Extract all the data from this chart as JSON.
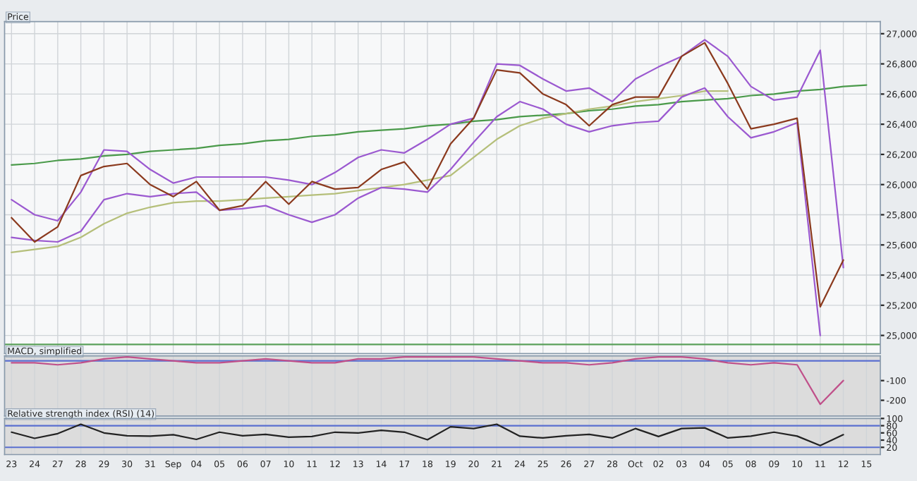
{
  "chart_data": [
    {
      "type": "line",
      "title": "Price",
      "ylim": [
        24880,
        27080
      ],
      "tick_labels": "y",
      "grid": true,
      "legend": false,
      "categories": [
        null,
        null,
        null,
        null,
        null,
        null,
        null,
        null,
        null,
        null,
        null,
        null,
        null,
        null,
        null,
        null,
        null,
        null,
        null,
        null,
        null,
        null,
        null,
        null,
        null,
        null,
        null,
        null,
        null,
        null,
        null,
        null,
        null,
        null,
        null,
        null,
        null,
        null
      ],
      "yticks": [
        {
          "value": 25000,
          "label": "25,000"
        },
        {
          "value": 25200,
          "label": "25,200"
        },
        {
          "value": 25400,
          "label": "25,400"
        },
        {
          "value": 25600,
          "label": "25,600"
        },
        {
          "value": 25800,
          "label": "25,800"
        },
        {
          "value": 26000,
          "label": "26,000"
        },
        {
          "value": 26200,
          "label": "26,200"
        },
        {
          "value": 26400,
          "label": "26,400"
        },
        {
          "value": 26600,
          "label": "26,600"
        },
        {
          "value": 26800,
          "label": "26,800"
        },
        {
          "value": 27000,
          "label": "27,000"
        }
      ],
      "ref_lines": [
        {
          "axis": "y",
          "value": 24940,
          "color": "#5aa05a"
        }
      ],
      "series": [
        {
          "color": "#4a9a4a",
          "values": [
            26130,
            26140,
            26160,
            26170,
            26190,
            26200,
            26220,
            26230,
            26240,
            26260,
            26270,
            26290,
            26300,
            26320,
            26330,
            26350,
            26360,
            26370,
            26390,
            26400,
            26420,
            26430,
            26450,
            26460,
            26470,
            26490,
            26500,
            26520,
            26530,
            26550,
            26560,
            26570,
            26590,
            26600,
            26620,
            26630,
            26650,
            26660
          ]
        },
        {
          "color": "#b5bf7a",
          "values": [
            25550,
            25570,
            25590,
            25650,
            25740,
            25810,
            25850,
            25880,
            25890,
            25890,
            25900,
            25910,
            25920,
            25930,
            25940,
            25960,
            25980,
            26000,
            26030,
            26060,
            26180,
            26300,
            26390,
            26440,
            26470,
            26500,
            26520,
            26550,
            26570,
            26590,
            26620,
            26620,
            null,
            null,
            null,
            null,
            null,
            null
          ]
        },
        {
          "color": "#9b59d0",
          "values": [
            25900,
            25800,
            25760,
            25950,
            26230,
            26220,
            26100,
            26010,
            26050,
            26050,
            26050,
            26050,
            26030,
            26000,
            26080,
            26180,
            26230,
            26210,
            26300,
            26400,
            26440,
            26800,
            26790,
            26700,
            26620,
            26640,
            26550,
            26700,
            26780,
            26850,
            26960,
            26850,
            26650,
            26560,
            26580,
            26890,
            25450,
            null
          ]
        },
        {
          "color": "#9b59d0",
          "values": [
            25650,
            25630,
            25620,
            25690,
            25900,
            25940,
            25920,
            25940,
            25950,
            25830,
            25840,
            25860,
            25800,
            25750,
            25800,
            25910,
            25980,
            25970,
            25950,
            26100,
            26280,
            26450,
            26550,
            26500,
            26400,
            26350,
            26390,
            26410,
            26420,
            26580,
            26640,
            26450,
            26310,
            26350,
            26410,
            25000,
            null,
            null
          ]
        },
        {
          "color": "#8b3a1e",
          "values": [
            25780,
            25620,
            25720,
            26060,
            26120,
            26140,
            26000,
            25920,
            26020,
            25830,
            25860,
            26020,
            25870,
            26020,
            25970,
            25980,
            26100,
            26150,
            25970,
            26270,
            26440,
            26760,
            26740,
            26600,
            26530,
            26390,
            26530,
            26580,
            26580,
            26850,
            26940,
            26670,
            26370,
            26400,
            26440,
            25190,
            25500,
            null
          ]
        }
      ]
    },
    {
      "type": "line",
      "title": "MACD, simplified",
      "ylim": [
        -280,
        25
      ],
      "tick_labels": "y",
      "grid": "x",
      "legend": false,
      "categories": [
        null,
        null,
        null,
        null,
        null,
        null,
        null,
        null,
        null,
        null,
        null,
        null,
        null,
        null,
        null,
        null,
        null,
        null,
        null,
        null,
        null,
        null,
        null,
        null,
        null,
        null,
        null,
        null,
        null,
        null,
        null,
        null,
        null,
        null,
        null,
        null,
        null,
        null
      ],
      "yticks": [
        -100,
        -200
      ],
      "ref_lines": [
        {
          "axis": "y",
          "value": 0,
          "color": "#5a6fd0"
        }
      ],
      "series": [
        {
          "color": "#c0508a",
          "values": [
            -10,
            -10,
            -20,
            -10,
            10,
            20,
            10,
            0,
            -10,
            -10,
            0,
            10,
            0,
            -10,
            -10,
            10,
            10,
            20,
            20,
            20,
            20,
            10,
            0,
            -10,
            -10,
            -20,
            -10,
            10,
            20,
            20,
            10,
            -10,
            -20,
            -10,
            -20,
            -220,
            -100,
            null
          ]
        }
      ]
    },
    {
      "type": "line",
      "title": "Relative strength index (RSI) (14)",
      "ylim": [
        0,
        100
      ],
      "grid": "x",
      "legend": false,
      "categories": [
        "23",
        "24",
        "27",
        "28",
        "29",
        "30",
        "31",
        "Sep",
        "04",
        "05",
        "06",
        "07",
        "10",
        "11",
        "12",
        "13",
        "14",
        "17",
        "18",
        "19",
        "20",
        "21",
        "24",
        "25",
        "26",
        "27",
        "28",
        "Oct",
        "02",
        "03",
        "04",
        "05",
        "08",
        "09",
        "10",
        "11",
        "12",
        "15"
      ],
      "yticks": [
        20,
        40,
        60,
        80,
        100
      ],
      "ref_lines": [
        {
          "axis": "y",
          "value": 80,
          "color": "#5a6fd0"
        },
        {
          "axis": "y",
          "value": 20,
          "color": "#5a6fd0"
        }
      ],
      "series": [
        {
          "color": "#222222",
          "values": [
            62,
            45,
            58,
            84,
            60,
            52,
            51,
            55,
            42,
            62,
            52,
            56,
            48,
            50,
            62,
            60,
            67,
            62,
            41,
            77,
            72,
            84,
            51,
            46,
            52,
            56,
            46,
            72,
            50,
            72,
            74,
            46,
            51,
            62,
            51,
            25,
            55,
            null
          ]
        }
      ]
    }
  ]
}
